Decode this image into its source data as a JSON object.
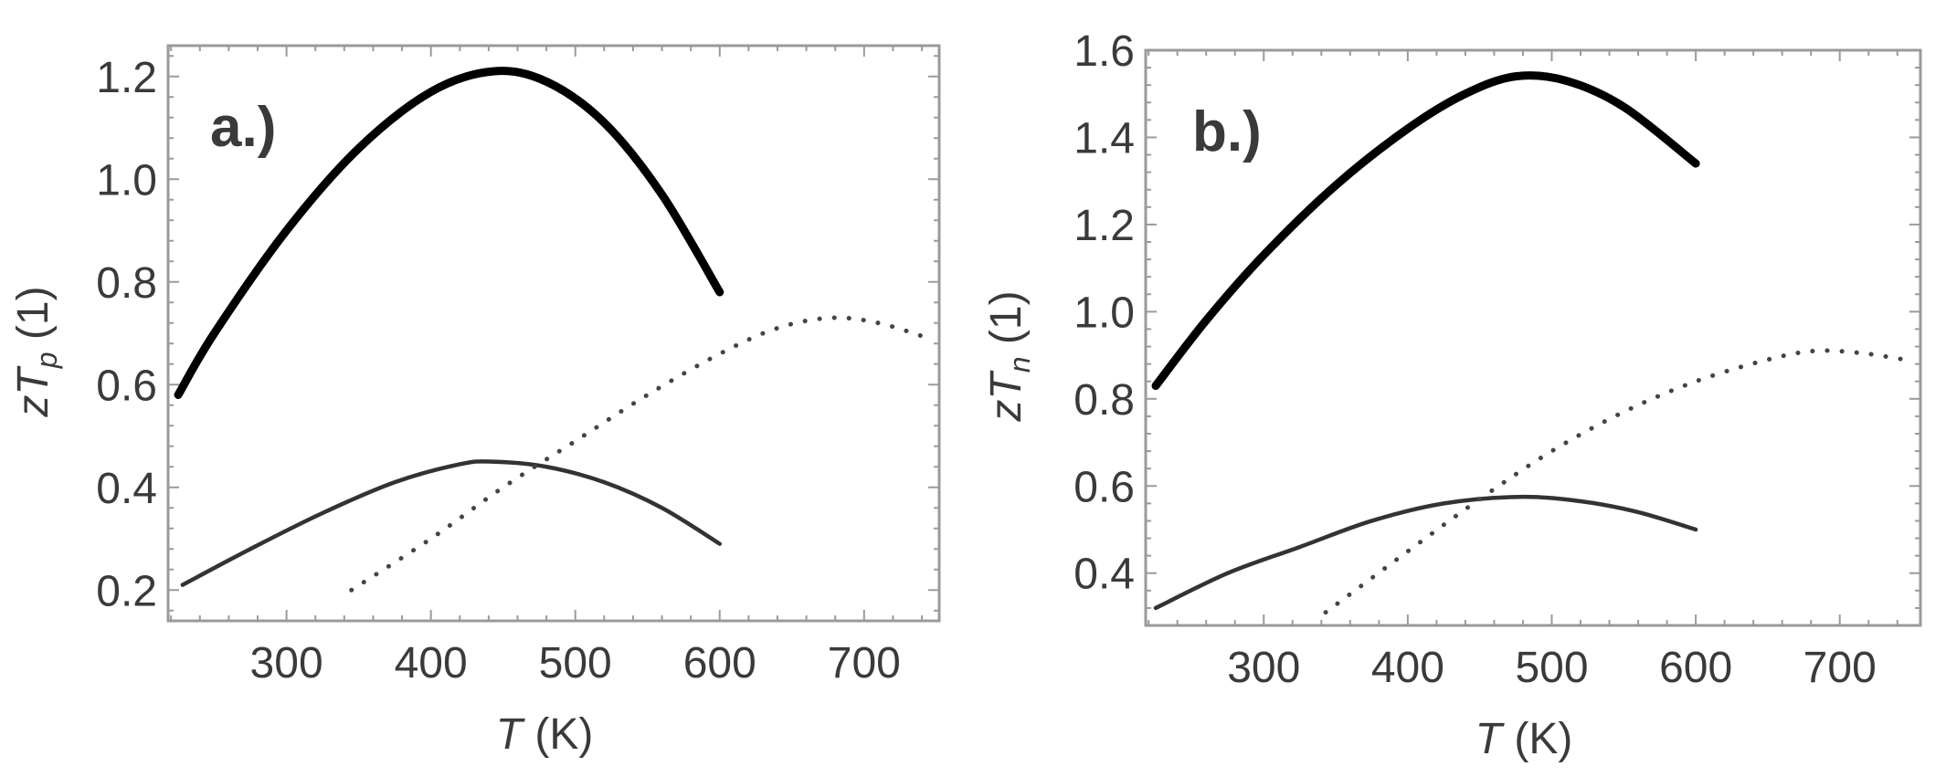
{
  "figure": {
    "panels": [
      {
        "tag": "a.)",
        "ylabel_main": "zT",
        "ylabel_sub": "p",
        "ylabel_unit": "(1)",
        "xlabel_var": "T",
        "xlabel_unit": "(K)"
      },
      {
        "tag": "b.)",
        "ylabel_main": "zT",
        "ylabel_sub": "n",
        "ylabel_unit": "(1)",
        "xlabel_var": "T",
        "xlabel_unit": "(K)"
      }
    ]
  },
  "chart_data": [
    {
      "type": "line",
      "title": "a.)",
      "xlabel": "T (K)",
      "ylabel": "zT_p (1)",
      "xlim": [
        218,
        752
      ],
      "ylim": [
        0.14,
        1.26
      ],
      "xticks": [
        300,
        400,
        500,
        600,
        700
      ],
      "yticks": [
        0.2,
        0.4,
        0.6,
        0.8,
        1.0,
        1.2
      ],
      "xtick_labels": [
        "300",
        "400",
        "500",
        "600",
        "700"
      ],
      "ytick_labels": [
        "0.2",
        "0.4",
        "0.6",
        "0.8",
        "1.0",
        "1.2"
      ],
      "grid": false,
      "legend": null,
      "series": [
        {
          "name": "thick solid",
          "style": "solid-thick",
          "x": [
            225,
            250,
            300,
            350,
            400,
            443,
            480,
            520,
            560,
            600
          ],
          "y": [
            0.58,
            0.7,
            0.9,
            1.06,
            1.17,
            1.21,
            1.19,
            1.11,
            0.97,
            0.78
          ]
        },
        {
          "name": "thin solid",
          "style": "solid-thin",
          "x": [
            228,
            275,
            325,
            375,
            420,
            443,
            480,
            520,
            560,
            600
          ],
          "y": [
            0.21,
            0.28,
            0.35,
            0.41,
            0.445,
            0.45,
            0.44,
            0.41,
            0.36,
            0.29
          ]
        },
        {
          "name": "dotted",
          "style": "dotted",
          "x": [
            345,
            400,
            450,
            500,
            550,
            600,
            640,
            677,
            710,
            745
          ],
          "y": [
            0.2,
            0.3,
            0.4,
            0.49,
            0.58,
            0.66,
            0.71,
            0.73,
            0.72,
            0.69
          ]
        }
      ]
    },
    {
      "type": "line",
      "title": "b.)",
      "xlabel": "T (K)",
      "ylabel": "zT_n (1)",
      "xlim": [
        218,
        756
      ],
      "ylim": [
        0.28,
        1.6
      ],
      "xticks": [
        300,
        400,
        500,
        600,
        700
      ],
      "yticks": [
        0.4,
        0.6,
        0.8,
        1.0,
        1.2,
        1.4,
        1.6
      ],
      "xtick_labels": [
        "300",
        "400",
        "500",
        "600",
        "700"
      ],
      "ytick_labels": [
        "0.4",
        "0.6",
        "0.8",
        "1.0",
        "1.2",
        "1.4",
        "1.6"
      ],
      "grid": false,
      "legend": null,
      "series": [
        {
          "name": "thick solid",
          "style": "solid-thick",
          "x": [
            225,
            260,
            300,
            350,
            400,
            440,
            475,
            510,
            550,
            600
          ],
          "y": [
            0.83,
            0.98,
            1.13,
            1.29,
            1.42,
            1.5,
            1.54,
            1.53,
            1.47,
            1.34
          ]
        },
        {
          "name": "thin solid",
          "style": "solid-thin",
          "x": [
            225,
            275,
            325,
            375,
            425,
            477,
            520,
            560,
            600
          ],
          "y": [
            0.32,
            0.4,
            0.46,
            0.52,
            0.56,
            0.575,
            0.565,
            0.54,
            0.5
          ]
        },
        {
          "name": "dotted",
          "style": "dotted",
          "x": [
            343,
            400,
            450,
            500,
            550,
            600,
            650,
            683,
            715,
            745
          ],
          "y": [
            0.31,
            0.45,
            0.57,
            0.68,
            0.77,
            0.84,
            0.89,
            0.91,
            0.905,
            0.89
          ]
        }
      ]
    }
  ]
}
